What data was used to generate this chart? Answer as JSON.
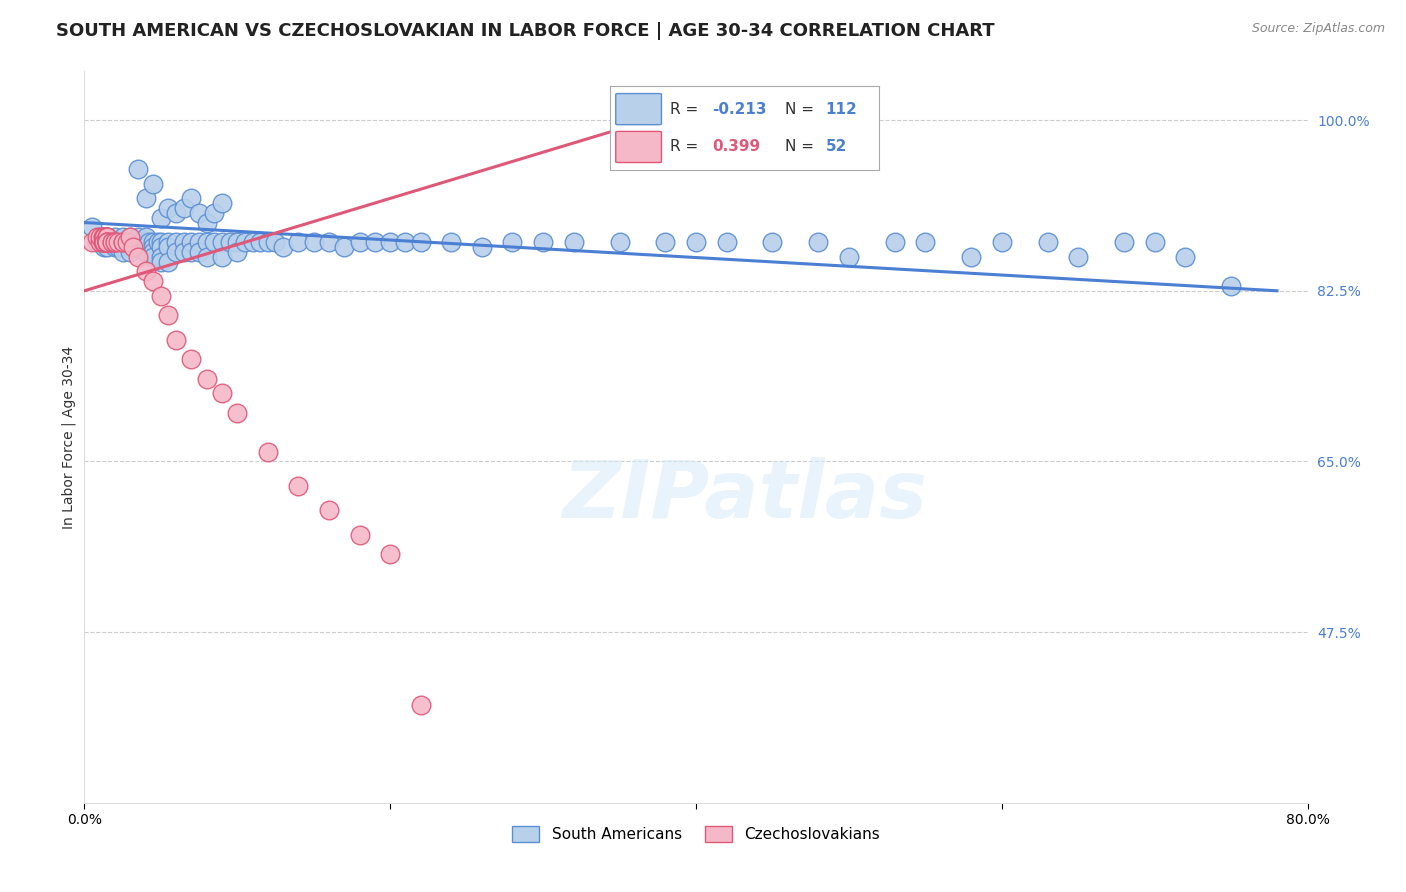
{
  "title": "SOUTH AMERICAN VS CZECHOSLOVAKIAN IN LABOR FORCE | AGE 30-34 CORRELATION CHART",
  "source_text": "Source: ZipAtlas.com",
  "ylabel": "In Labor Force | Age 30-34",
  "xlim": [
    0.0,
    0.8
  ],
  "ylim": [
    0.3,
    1.05
  ],
  "yticks": [
    0.475,
    0.65,
    0.825,
    1.0
  ],
  "ytick_labels": [
    "47.5%",
    "65.0%",
    "82.5%",
    "100.0%"
  ],
  "blue_color": "#b8d0ea",
  "blue_edge_color": "#5b8fd4",
  "pink_color": "#f5b8c8",
  "pink_edge_color": "#e05878",
  "blue_line_color": "#4a7fd4",
  "pink_line_color": "#e05878",
  "tick_color": "#4a7fd4",
  "grid_color": "#cccccc",
  "background_color": "#ffffff",
  "title_fontsize": 13,
  "axis_label_fontsize": 10,
  "tick_label_fontsize": 10,
  "legend_fontsize": 12,
  "source_fontsize": 9,
  "watermark": "ZIPatlas",
  "blue_line_x": [
    0.0,
    0.78
  ],
  "blue_line_y": [
    0.895,
    0.825
  ],
  "pink_line_x": [
    0.0,
    0.38
  ],
  "pink_line_y": [
    0.825,
    1.005
  ],
  "blue_x": [
    0.005,
    0.008,
    0.01,
    0.01,
    0.012,
    0.013,
    0.015,
    0.015,
    0.015,
    0.018,
    0.02,
    0.02,
    0.02,
    0.022,
    0.022,
    0.025,
    0.025,
    0.025,
    0.025,
    0.027,
    0.03,
    0.03,
    0.03,
    0.03,
    0.032,
    0.035,
    0.035,
    0.035,
    0.038,
    0.038,
    0.04,
    0.04,
    0.04,
    0.04,
    0.042,
    0.045,
    0.045,
    0.045,
    0.045,
    0.048,
    0.05,
    0.05,
    0.05,
    0.05,
    0.055,
    0.055,
    0.055,
    0.06,
    0.06,
    0.065,
    0.065,
    0.07,
    0.07,
    0.075,
    0.075,
    0.08,
    0.08,
    0.085,
    0.09,
    0.09,
    0.095,
    0.1,
    0.1,
    0.105,
    0.11,
    0.115,
    0.12,
    0.125,
    0.13,
    0.14,
    0.15,
    0.16,
    0.17,
    0.18,
    0.19,
    0.2,
    0.21,
    0.22,
    0.24,
    0.26,
    0.28,
    0.3,
    0.32,
    0.35,
    0.38,
    0.4,
    0.42,
    0.45,
    0.48,
    0.5,
    0.53,
    0.55,
    0.58,
    0.6,
    0.63,
    0.65,
    0.68,
    0.7,
    0.72,
    0.75,
    0.035,
    0.04,
    0.045,
    0.05,
    0.055,
    0.06,
    0.065,
    0.07,
    0.075,
    0.08,
    0.085,
    0.09
  ],
  "blue_y": [
    0.89,
    0.875,
    0.88,
    0.875,
    0.875,
    0.87,
    0.88,
    0.875,
    0.87,
    0.875,
    0.88,
    0.875,
    0.87,
    0.875,
    0.87,
    0.88,
    0.875,
    0.87,
    0.865,
    0.875,
    0.875,
    0.88,
    0.87,
    0.865,
    0.875,
    0.88,
    0.875,
    0.87,
    0.875,
    0.87,
    0.875,
    0.88,
    0.87,
    0.865,
    0.875,
    0.875,
    0.87,
    0.865,
    0.86,
    0.875,
    0.875,
    0.87,
    0.86,
    0.855,
    0.875,
    0.87,
    0.855,
    0.875,
    0.865,
    0.875,
    0.865,
    0.875,
    0.865,
    0.875,
    0.865,
    0.875,
    0.86,
    0.875,
    0.875,
    0.86,
    0.875,
    0.875,
    0.865,
    0.875,
    0.875,
    0.875,
    0.875,
    0.875,
    0.87,
    0.875,
    0.875,
    0.875,
    0.87,
    0.875,
    0.875,
    0.875,
    0.875,
    0.875,
    0.875,
    0.87,
    0.875,
    0.875,
    0.875,
    0.875,
    0.875,
    0.875,
    0.875,
    0.875,
    0.875,
    0.86,
    0.875,
    0.875,
    0.86,
    0.875,
    0.875,
    0.86,
    0.875,
    0.875,
    0.86,
    0.83,
    0.95,
    0.92,
    0.935,
    0.9,
    0.91,
    0.905,
    0.91,
    0.92,
    0.905,
    0.895,
    0.905,
    0.915
  ],
  "pink_x": [
    0.005,
    0.008,
    0.01,
    0.01,
    0.012,
    0.012,
    0.013,
    0.013,
    0.013,
    0.013,
    0.013,
    0.013,
    0.013,
    0.013,
    0.013,
    0.015,
    0.015,
    0.015,
    0.015,
    0.015,
    0.015,
    0.015,
    0.015,
    0.015,
    0.015,
    0.015,
    0.018,
    0.018,
    0.02,
    0.02,
    0.022,
    0.025,
    0.025,
    0.028,
    0.03,
    0.032,
    0.035,
    0.04,
    0.045,
    0.05,
    0.055,
    0.06,
    0.07,
    0.08,
    0.09,
    0.1,
    0.12,
    0.14,
    0.16,
    0.18,
    0.2,
    0.22
  ],
  "pink_y": [
    0.875,
    0.88,
    0.875,
    0.88,
    0.875,
    0.88,
    0.875,
    0.88,
    0.875,
    0.88,
    0.875,
    0.88,
    0.875,
    0.88,
    0.875,
    0.88,
    0.875,
    0.88,
    0.875,
    0.88,
    0.875,
    0.88,
    0.875,
    0.875,
    0.875,
    0.875,
    0.875,
    0.875,
    0.875,
    0.875,
    0.875,
    0.875,
    0.875,
    0.875,
    0.88,
    0.87,
    0.86,
    0.845,
    0.835,
    0.82,
    0.8,
    0.775,
    0.755,
    0.735,
    0.72,
    0.7,
    0.66,
    0.625,
    0.6,
    0.575,
    0.555,
    0.4
  ]
}
